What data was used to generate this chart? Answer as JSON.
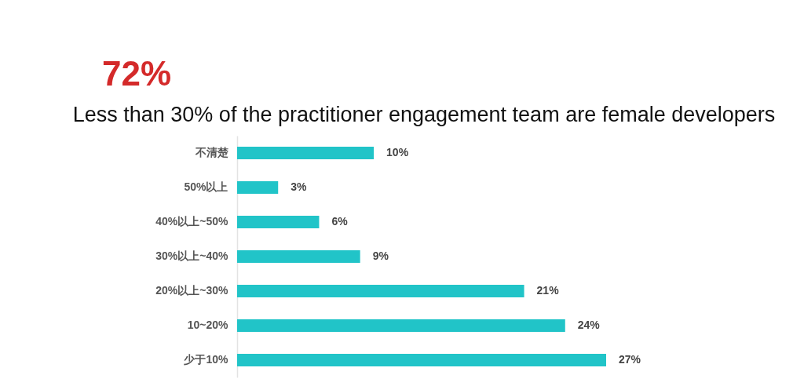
{
  "chart_data": {
    "type": "bar",
    "orientation": "horizontal",
    "title": "72%",
    "subtitle": "Less than 30% of the practitioner engagement team are female developers",
    "categories": [
      "不清楚",
      "50%以上",
      "40%以上~50%",
      "30%以上~40%",
      "20%以上~30%",
      "10~20%",
      "少于10%"
    ],
    "values": [
      10,
      3,
      6,
      9,
      21,
      24,
      27
    ],
    "value_labels": [
      "10%",
      "3%",
      "6%",
      "9%",
      "21%",
      "24%",
      "27%"
    ],
    "color": "#21c4c8",
    "tick_labels": "y"
  }
}
